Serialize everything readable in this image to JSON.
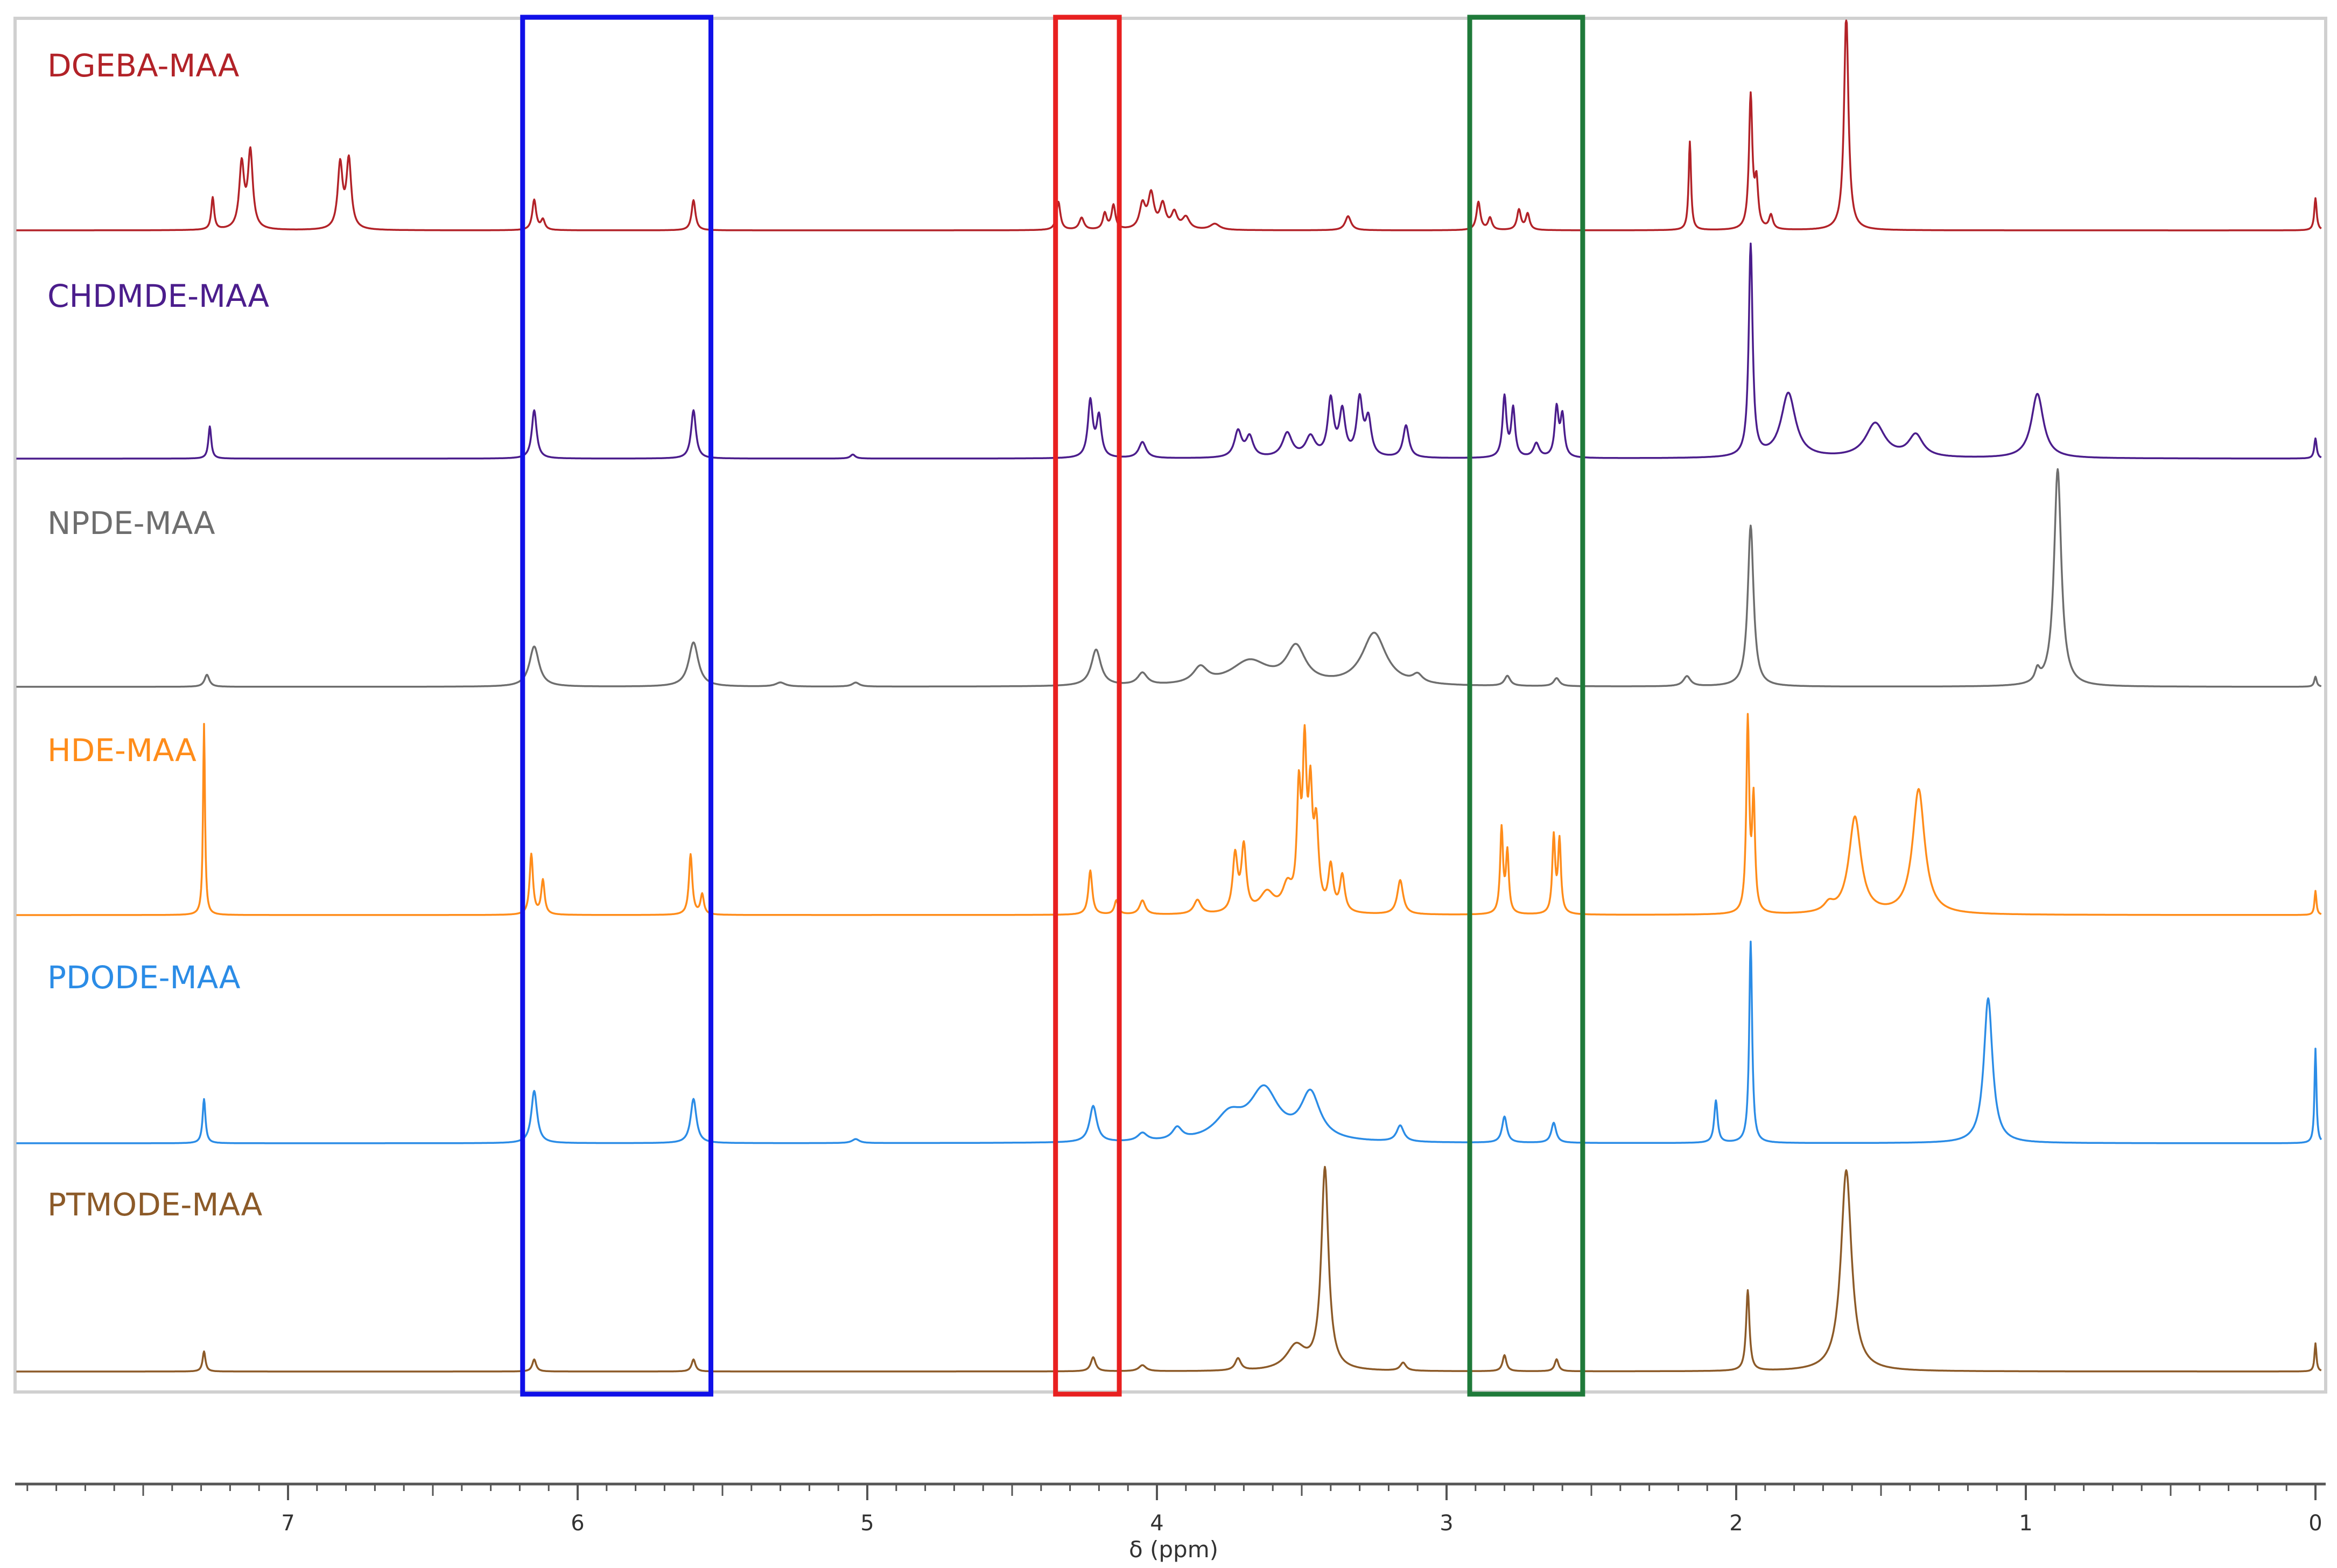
{
  "chart_data": {
    "type": "line",
    "xlabel": "δ (ppm)",
    "ylabel": "",
    "xlim": [
      8.0,
      0.0
    ],
    "x_reversed": true,
    "x_ticks": [
      "7",
      "6",
      "5",
      "4",
      "3",
      "2",
      "1",
      "0"
    ],
    "grid": false,
    "series": [
      {
        "name": "DGEBA-MAA",
        "color": "#b22228",
        "peaks": [
          {
            "x": 7.26,
            "h": 0.16,
            "w": 0.006
          },
          {
            "x": 7.16,
            "h": 0.32,
            "w": 0.01
          },
          {
            "x": 7.13,
            "h": 0.38,
            "w": 0.01
          },
          {
            "x": 6.82,
            "h": 0.32,
            "w": 0.01
          },
          {
            "x": 6.79,
            "h": 0.34,
            "w": 0.01
          },
          {
            "x": 6.15,
            "h": 0.15,
            "w": 0.008
          },
          {
            "x": 6.12,
            "h": 0.05,
            "w": 0.008
          },
          {
            "x": 5.6,
            "h": 0.15,
            "w": 0.008
          },
          {
            "x": 4.34,
            "h": 0.14,
            "w": 0.008
          },
          {
            "x": 4.26,
            "h": 0.06,
            "w": 0.01
          },
          {
            "x": 4.18,
            "h": 0.08,
            "w": 0.008
          },
          {
            "x": 4.15,
            "h": 0.12,
            "w": 0.008
          },
          {
            "x": 4.05,
            "h": 0.12,
            "w": 0.012
          },
          {
            "x": 4.02,
            "h": 0.17,
            "w": 0.012
          },
          {
            "x": 3.98,
            "h": 0.12,
            "w": 0.012
          },
          {
            "x": 3.94,
            "h": 0.08,
            "w": 0.012
          },
          {
            "x": 3.9,
            "h": 0.06,
            "w": 0.015
          },
          {
            "x": 3.8,
            "h": 0.03,
            "w": 0.02
          },
          {
            "x": 3.34,
            "h": 0.07,
            "w": 0.012
          },
          {
            "x": 2.89,
            "h": 0.14,
            "w": 0.008
          },
          {
            "x": 2.85,
            "h": 0.06,
            "w": 0.008
          },
          {
            "x": 2.75,
            "h": 0.1,
            "w": 0.008
          },
          {
            "x": 2.72,
            "h": 0.08,
            "w": 0.008
          },
          {
            "x": 2.16,
            "h": 0.44,
            "w": 0.005
          },
          {
            "x": 1.95,
            "h": 0.66,
            "w": 0.007
          },
          {
            "x": 1.93,
            "h": 0.22,
            "w": 0.007
          },
          {
            "x": 1.88,
            "h": 0.07,
            "w": 0.008
          },
          {
            "x": 1.62,
            "h": 1.08,
            "w": 0.009
          },
          {
            "x": 0.0,
            "h": 0.16,
            "w": 0.005
          }
        ]
      },
      {
        "name": "CHDMDE-MAA",
        "color": "#4b1d8c",
        "peaks": [
          {
            "x": 7.27,
            "h": 0.16,
            "w": 0.006
          },
          {
            "x": 6.15,
            "h": 0.24,
            "w": 0.01
          },
          {
            "x": 5.6,
            "h": 0.24,
            "w": 0.01
          },
          {
            "x": 5.05,
            "h": 0.02,
            "w": 0.01
          },
          {
            "x": 4.23,
            "h": 0.28,
            "w": 0.01
          },
          {
            "x": 4.2,
            "h": 0.2,
            "w": 0.01
          },
          {
            "x": 4.05,
            "h": 0.08,
            "w": 0.015
          },
          {
            "x": 3.72,
            "h": 0.13,
            "w": 0.015
          },
          {
            "x": 3.68,
            "h": 0.1,
            "w": 0.015
          },
          {
            "x": 3.55,
            "h": 0.12,
            "w": 0.02
          },
          {
            "x": 3.47,
            "h": 0.1,
            "w": 0.02
          },
          {
            "x": 3.4,
            "h": 0.28,
            "w": 0.012
          },
          {
            "x": 3.36,
            "h": 0.22,
            "w": 0.012
          },
          {
            "x": 3.3,
            "h": 0.28,
            "w": 0.012
          },
          {
            "x": 3.27,
            "h": 0.18,
            "w": 0.012
          },
          {
            "x": 3.14,
            "h": 0.16,
            "w": 0.012
          },
          {
            "x": 2.8,
            "h": 0.3,
            "w": 0.008
          },
          {
            "x": 2.77,
            "h": 0.24,
            "w": 0.008
          },
          {
            "x": 2.69,
            "h": 0.07,
            "w": 0.012
          },
          {
            "x": 2.62,
            "h": 0.24,
            "w": 0.008
          },
          {
            "x": 2.6,
            "h": 0.2,
            "w": 0.008
          },
          {
            "x": 1.95,
            "h": 1.05,
            "w": 0.008
          },
          {
            "x": 1.82,
            "h": 0.32,
            "w": 0.03
          },
          {
            "x": 1.52,
            "h": 0.17,
            "w": 0.04
          },
          {
            "x": 1.38,
            "h": 0.11,
            "w": 0.03
          },
          {
            "x": 0.96,
            "h": 0.32,
            "w": 0.025
          },
          {
            "x": 0.0,
            "h": 0.1,
            "w": 0.005
          }
        ]
      },
      {
        "name": "NPDE-MAA",
        "color": "#6e6e6e",
        "peaks": [
          {
            "x": 7.28,
            "h": 0.06,
            "w": 0.01
          },
          {
            "x": 6.15,
            "h": 0.2,
            "w": 0.02
          },
          {
            "x": 5.6,
            "h": 0.22,
            "w": 0.02
          },
          {
            "x": 5.3,
            "h": 0.02,
            "w": 0.02
          },
          {
            "x": 5.04,
            "h": 0.02,
            "w": 0.015
          },
          {
            "x": 4.21,
            "h": 0.18,
            "w": 0.02
          },
          {
            "x": 4.05,
            "h": 0.06,
            "w": 0.02
          },
          {
            "x": 3.85,
            "h": 0.08,
            "w": 0.03
          },
          {
            "x": 3.68,
            "h": 0.12,
            "w": 0.08
          },
          {
            "x": 3.52,
            "h": 0.18,
            "w": 0.04
          },
          {
            "x": 3.25,
            "h": 0.26,
            "w": 0.05
          },
          {
            "x": 3.1,
            "h": 0.04,
            "w": 0.02
          },
          {
            "x": 2.79,
            "h": 0.05,
            "w": 0.012
          },
          {
            "x": 2.62,
            "h": 0.04,
            "w": 0.012
          },
          {
            "x": 2.17,
            "h": 0.05,
            "w": 0.015
          },
          {
            "x": 1.95,
            "h": 0.8,
            "w": 0.012
          },
          {
            "x": 0.96,
            "h": 0.06,
            "w": 0.01
          },
          {
            "x": 0.89,
            "h": 1.08,
            "w": 0.015
          },
          {
            "x": 0.0,
            "h": 0.05,
            "w": 0.005
          }
        ]
      },
      {
        "name": "HDE-MAA",
        "color": "#ff8c1a",
        "peaks": [
          {
            "x": 7.29,
            "h": 0.95,
            "w": 0.004
          },
          {
            "x": 6.16,
            "h": 0.3,
            "w": 0.007
          },
          {
            "x": 6.12,
            "h": 0.17,
            "w": 0.007
          },
          {
            "x": 5.61,
            "h": 0.3,
            "w": 0.007
          },
          {
            "x": 5.57,
            "h": 0.1,
            "w": 0.007
          },
          {
            "x": 4.23,
            "h": 0.22,
            "w": 0.008
          },
          {
            "x": 4.14,
            "h": 0.07,
            "w": 0.008
          },
          {
            "x": 4.05,
            "h": 0.07,
            "w": 0.012
          },
          {
            "x": 3.86,
            "h": 0.07,
            "w": 0.015
          },
          {
            "x": 3.73,
            "h": 0.28,
            "w": 0.01
          },
          {
            "x": 3.7,
            "h": 0.32,
            "w": 0.01
          },
          {
            "x": 3.62,
            "h": 0.1,
            "w": 0.03
          },
          {
            "x": 3.55,
            "h": 0.12,
            "w": 0.02
          },
          {
            "x": 3.51,
            "h": 0.55,
            "w": 0.008
          },
          {
            "x": 3.49,
            "h": 0.75,
            "w": 0.008
          },
          {
            "x": 3.47,
            "h": 0.52,
            "w": 0.008
          },
          {
            "x": 3.45,
            "h": 0.4,
            "w": 0.01
          },
          {
            "x": 3.4,
            "h": 0.22,
            "w": 0.01
          },
          {
            "x": 3.36,
            "h": 0.18,
            "w": 0.01
          },
          {
            "x": 3.16,
            "h": 0.17,
            "w": 0.012
          },
          {
            "x": 2.81,
            "h": 0.42,
            "w": 0.006
          },
          {
            "x": 2.79,
            "h": 0.3,
            "w": 0.006
          },
          {
            "x": 2.63,
            "h": 0.38,
            "w": 0.006
          },
          {
            "x": 2.61,
            "h": 0.36,
            "w": 0.006
          },
          {
            "x": 1.96,
            "h": 0.95,
            "w": 0.006
          },
          {
            "x": 1.94,
            "h": 0.55,
            "w": 0.006
          },
          {
            "x": 1.68,
            "h": 0.04,
            "w": 0.02
          },
          {
            "x": 1.59,
            "h": 0.48,
            "w": 0.025
          },
          {
            "x": 1.37,
            "h": 0.62,
            "w": 0.025
          },
          {
            "x": 0.0,
            "h": 0.12,
            "w": 0.004
          }
        ]
      },
      {
        "name": "PDODE-MAA",
        "color": "#2b8ce6",
        "peaks": [
          {
            "x": 7.29,
            "h": 0.22,
            "w": 0.006
          },
          {
            "x": 6.15,
            "h": 0.26,
            "w": 0.012
          },
          {
            "x": 5.6,
            "h": 0.22,
            "w": 0.012
          },
          {
            "x": 5.04,
            "h": 0.02,
            "w": 0.015
          },
          {
            "x": 4.22,
            "h": 0.18,
            "w": 0.015
          },
          {
            "x": 4.05,
            "h": 0.04,
            "w": 0.02
          },
          {
            "x": 3.93,
            "h": 0.06,
            "w": 0.02
          },
          {
            "x": 3.75,
            "h": 0.12,
            "w": 0.06
          },
          {
            "x": 3.63,
            "h": 0.25,
            "w": 0.06
          },
          {
            "x": 3.47,
            "h": 0.23,
            "w": 0.04
          },
          {
            "x": 3.16,
            "h": 0.08,
            "w": 0.015
          },
          {
            "x": 2.8,
            "h": 0.13,
            "w": 0.01
          },
          {
            "x": 2.63,
            "h": 0.1,
            "w": 0.01
          },
          {
            "x": 2.07,
            "h": 0.21,
            "w": 0.007
          },
          {
            "x": 1.95,
            "h": 1.0,
            "w": 0.006
          },
          {
            "x": 1.13,
            "h": 0.72,
            "w": 0.018
          },
          {
            "x": 0.0,
            "h": 0.47,
            "w": 0.004
          }
        ]
      },
      {
        "name": "PTMODE-MAA",
        "color": "#8c5a28",
        "peaks": [
          {
            "x": 7.29,
            "h": 0.1,
            "w": 0.006
          },
          {
            "x": 6.15,
            "h": 0.06,
            "w": 0.008
          },
          {
            "x": 5.6,
            "h": 0.06,
            "w": 0.008
          },
          {
            "x": 4.22,
            "h": 0.07,
            "w": 0.01
          },
          {
            "x": 4.05,
            "h": 0.03,
            "w": 0.015
          },
          {
            "x": 3.72,
            "h": 0.06,
            "w": 0.012
          },
          {
            "x": 3.52,
            "h": 0.12,
            "w": 0.04
          },
          {
            "x": 3.42,
            "h": 1.0,
            "w": 0.015
          },
          {
            "x": 3.15,
            "h": 0.04,
            "w": 0.012
          },
          {
            "x": 2.8,
            "h": 0.08,
            "w": 0.008
          },
          {
            "x": 2.62,
            "h": 0.06,
            "w": 0.008
          },
          {
            "x": 1.96,
            "h": 0.4,
            "w": 0.007
          },
          {
            "x": 1.62,
            "h": 1.0,
            "w": 0.022
          },
          {
            "x": 0.0,
            "h": 0.14,
            "w": 0.004
          }
        ]
      }
    ],
    "highlight_regions": [
      {
        "x_from": 6.19,
        "x_to": 5.54,
        "color": "#1010e8"
      },
      {
        "x_from": 4.35,
        "x_to": 4.13,
        "color": "#e82020"
      },
      {
        "x_from": 2.92,
        "x_to": 2.53,
        "color": "#1f7a3a"
      }
    ]
  }
}
